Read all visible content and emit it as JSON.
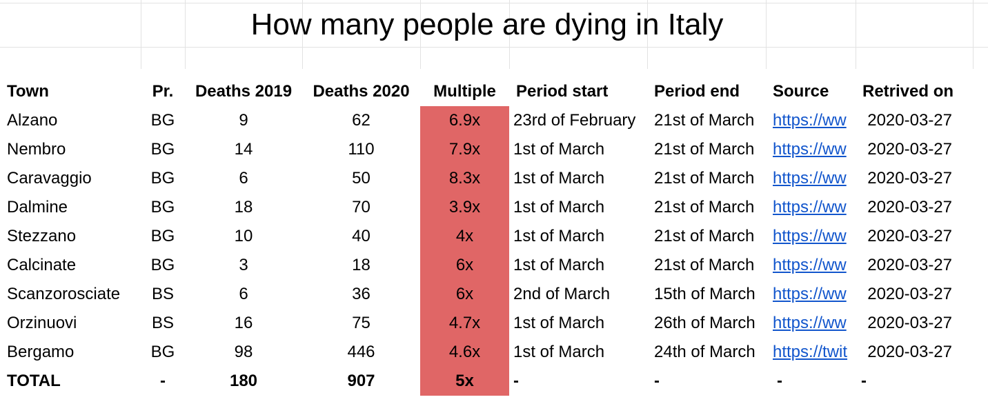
{
  "sheet": {
    "title": "How many people are dying in Italy",
    "headers": [
      "Town",
      "Pr.",
      "Deaths 2019",
      "Deaths 2020",
      "Multiple",
      "Period start",
      "Period end",
      "Source",
      "Retrived on"
    ],
    "rows": [
      {
        "town": "Alzano",
        "pr": "BG",
        "d2019": "9",
        "d2020": "62",
        "multiple": "6.9x",
        "start": "23rd of February",
        "end": "21st of March",
        "source": "https://ww",
        "retrieved": "2020-03-27"
      },
      {
        "town": "Nembro",
        "pr": "BG",
        "d2019": "14",
        "d2020": "110",
        "multiple": "7.9x",
        "start": "1st of March",
        "end": "21st of March",
        "source": "https://ww",
        "retrieved": "2020-03-27"
      },
      {
        "town": "Caravaggio",
        "pr": "BG",
        "d2019": "6",
        "d2020": "50",
        "multiple": "8.3x",
        "start": "1st of March",
        "end": "21st of March",
        "source": "https://ww",
        "retrieved": "2020-03-27"
      },
      {
        "town": "Dalmine",
        "pr": "BG",
        "d2019": "18",
        "d2020": "70",
        "multiple": "3.9x",
        "start": "1st of March",
        "end": "21st of March",
        "source": "https://ww",
        "retrieved": "2020-03-27"
      },
      {
        "town": "Stezzano",
        "pr": "BG",
        "d2019": "10",
        "d2020": "40",
        "multiple": "4x",
        "start": "1st of March",
        "end": "21st of March",
        "source": "https://ww",
        "retrieved": "2020-03-27"
      },
      {
        "town": "Calcinate",
        "pr": "BG",
        "d2019": "3",
        "d2020": "18",
        "multiple": "6x",
        "start": "1st of March",
        "end": "21st of March",
        "source": "https://ww",
        "retrieved": "2020-03-27"
      },
      {
        "town": "Scanzorosciate",
        "pr": "BS",
        "d2019": "6",
        "d2020": "36",
        "multiple": "6x",
        "start": "2nd of March",
        "end": "15th of March",
        "source": "https://ww",
        "retrieved": "2020-03-27"
      },
      {
        "town": "Orzinuovi",
        "pr": "BS",
        "d2019": "16",
        "d2020": "75",
        "multiple": "4.7x",
        "start": "1st of March",
        "end": "26th of March",
        "source": "https://ww",
        "retrieved": "2020-03-27"
      },
      {
        "town": "Bergamo",
        "pr": "BG",
        "d2019": "98",
        "d2020": "446",
        "multiple": "4.6x",
        "start": "1st of March",
        "end": "24th of March",
        "source": "https://twit",
        "retrieved": "2020-03-27"
      }
    ],
    "total": {
      "town": "TOTAL",
      "pr": "-",
      "d2019": "180",
      "d2020": "907",
      "multiple": "5x",
      "start": "-",
      "end": "-",
      "source": "-",
      "retrieved": "-"
    },
    "colors": {
      "highlight": "#e06666",
      "link": "#1155cc"
    }
  }
}
